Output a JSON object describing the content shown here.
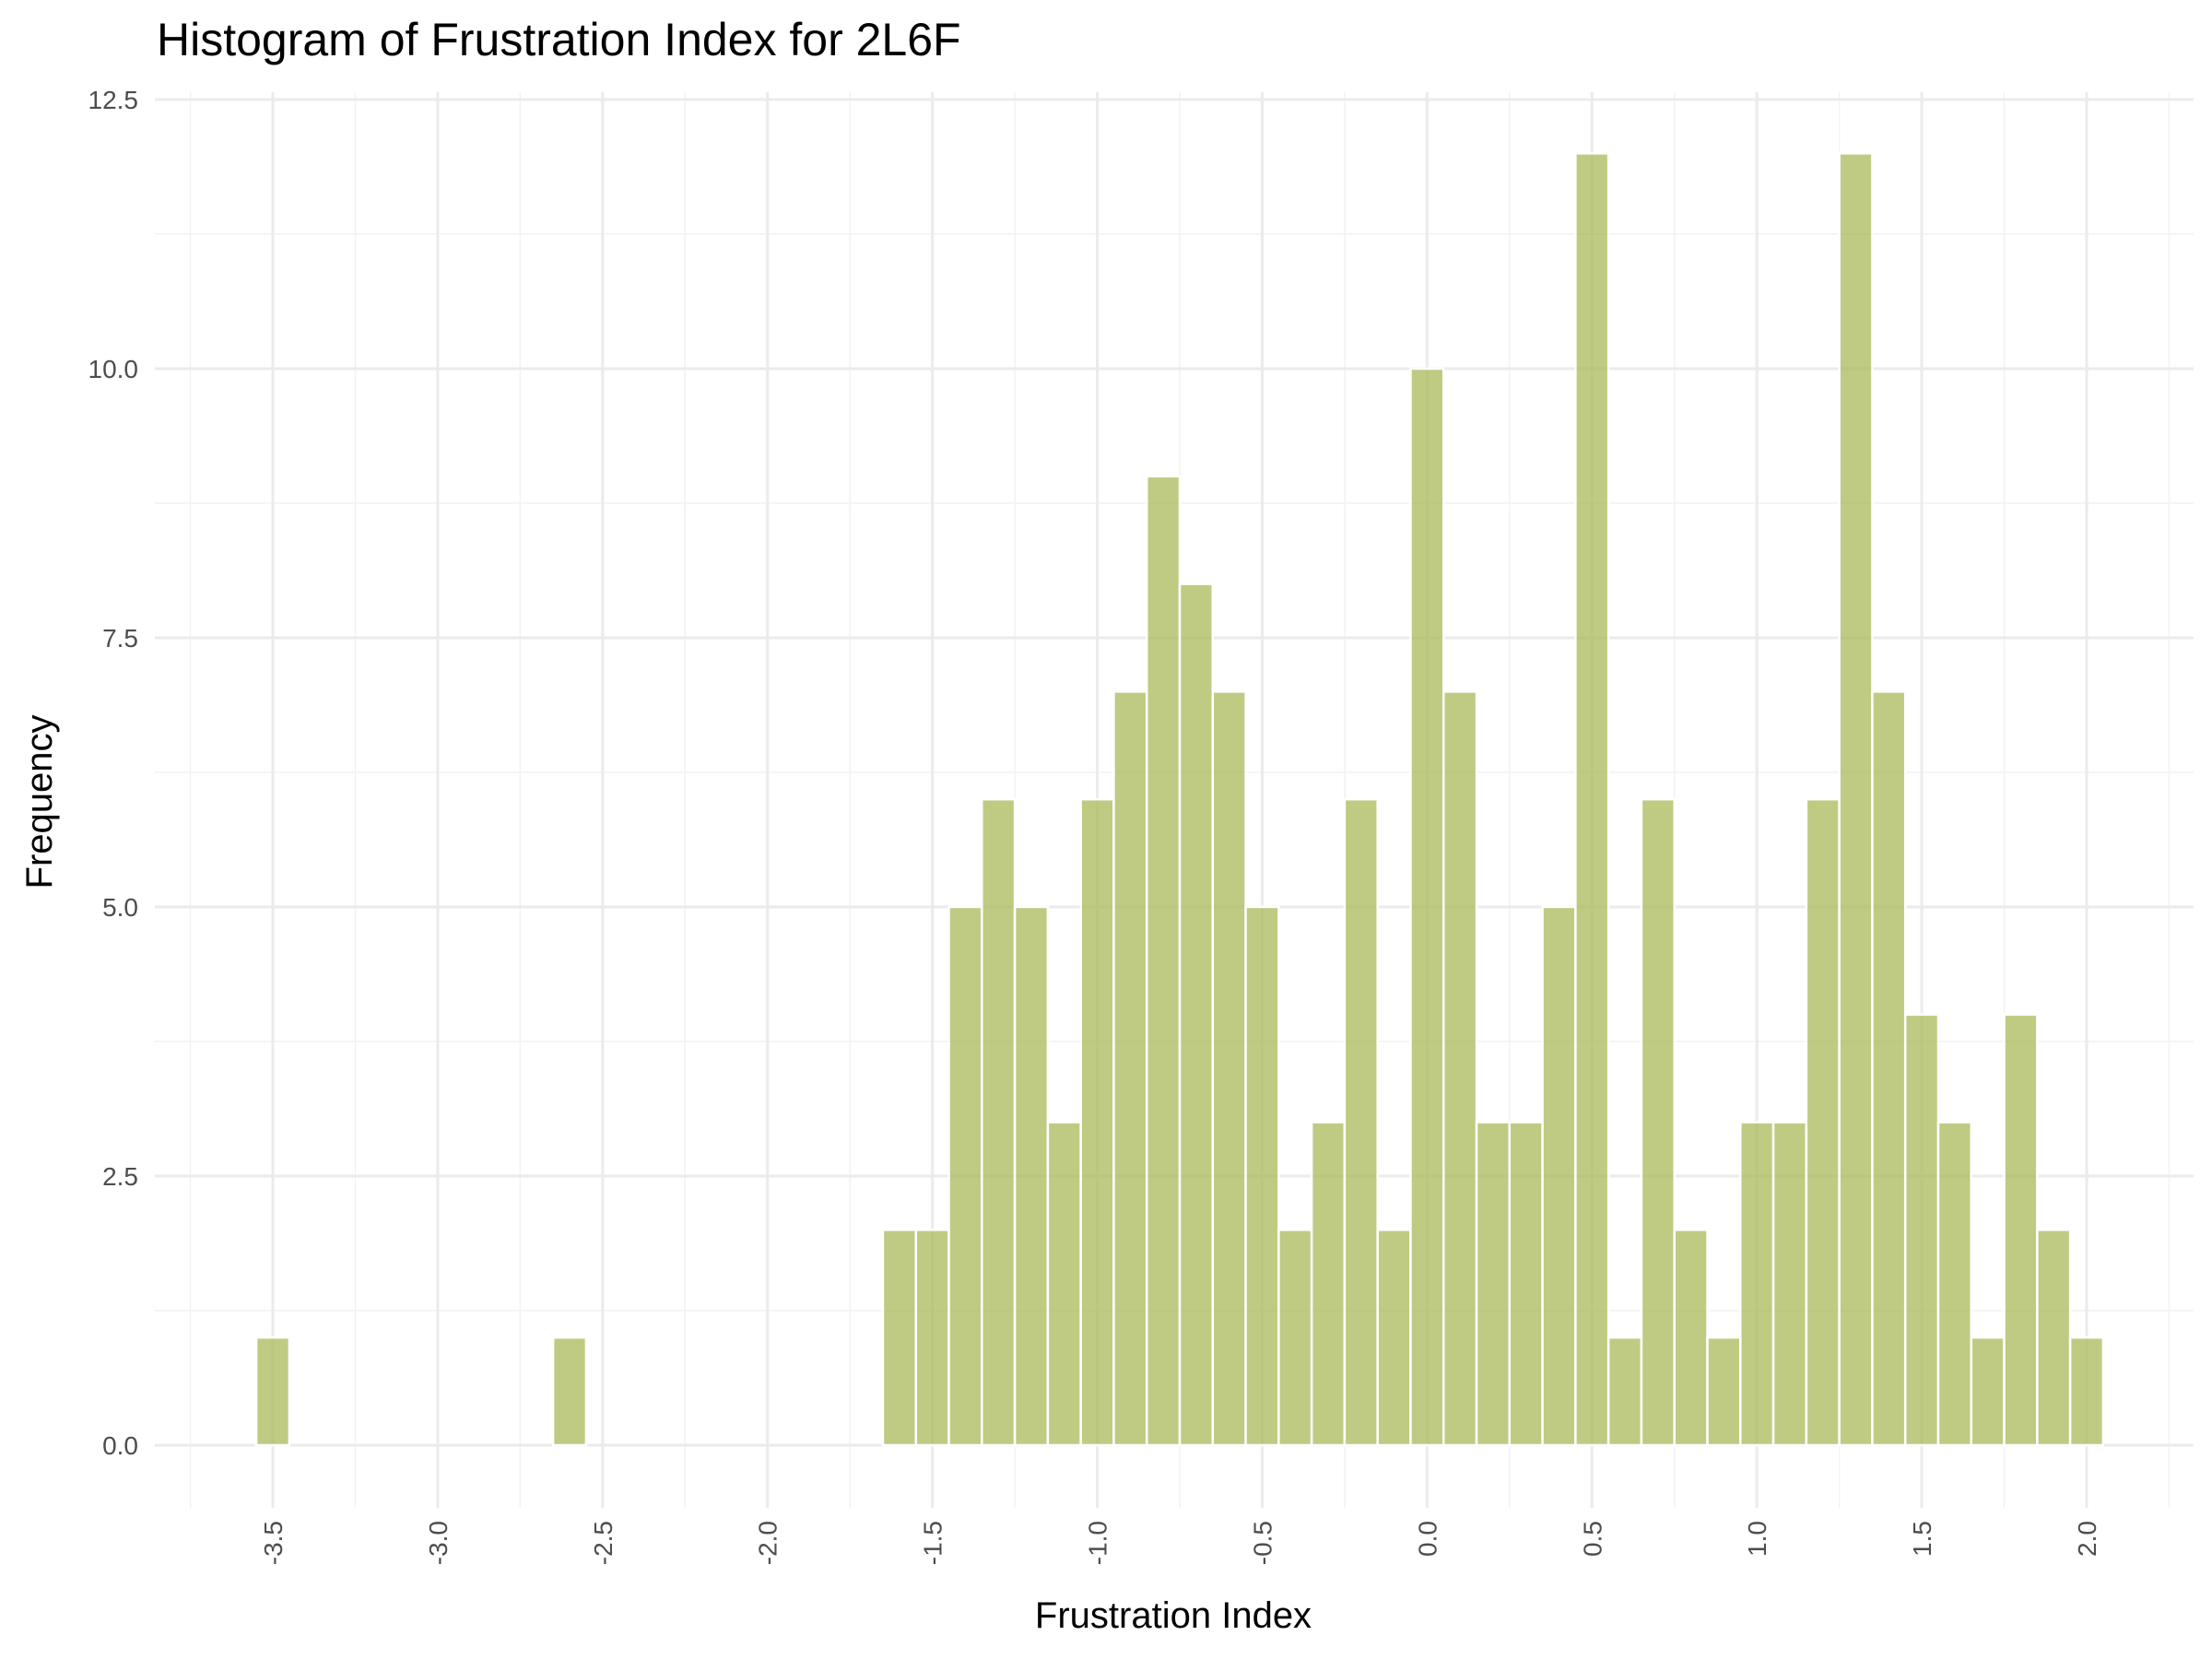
{
  "chart_data": {
    "type": "bar",
    "title": "Histogram of Frustration Index for 2L6F",
    "xlabel": "Frustration Index",
    "ylabel": "Frequency",
    "bar_color": "#a9b95a",
    "bin_width": 0.1,
    "xlim": [
      -3.75,
      2.25
    ],
    "ylim": [
      -0.6,
      12.5
    ],
    "x_ticks": [
      -3.5,
      -3.0,
      -2.5,
      -2.0,
      -1.5,
      -1.0,
      -0.5,
      0.0,
      0.5,
      1.0,
      1.5,
      2.0
    ],
    "x_tick_labels": [
      "-3.5",
      "-3.0",
      "-2.5",
      "-2.0",
      "-1.5",
      "-1.0",
      "-0.5",
      "0.0",
      "0.5",
      "1.0",
      "1.5",
      "2.0"
    ],
    "y_ticks": [
      0,
      2.5,
      5,
      7.5,
      10,
      12.5
    ],
    "y_tick_labels": [
      "0.0",
      "2.5",
      "5.0",
      "7.5",
      "10.0",
      "12.5"
    ],
    "bins": [
      {
        "x": -3.5,
        "count": 1
      },
      {
        "x": -3.4,
        "count": 0
      },
      {
        "x": -3.3,
        "count": 0
      },
      {
        "x": -3.2,
        "count": 0
      },
      {
        "x": -3.1,
        "count": 0
      },
      {
        "x": -3.0,
        "count": 0
      },
      {
        "x": -2.9,
        "count": 0
      },
      {
        "x": -2.8,
        "count": 0
      },
      {
        "x": -2.7,
        "count": 0
      },
      {
        "x": -2.6,
        "count": 1
      },
      {
        "x": -2.5,
        "count": 0
      },
      {
        "x": -2.4,
        "count": 0
      },
      {
        "x": -2.3,
        "count": 0
      },
      {
        "x": -2.2,
        "count": 0
      },
      {
        "x": -2.1,
        "count": 0
      },
      {
        "x": -2.0,
        "count": 0
      },
      {
        "x": -1.9,
        "count": 0
      },
      {
        "x": -1.8,
        "count": 0
      },
      {
        "x": -1.7,
        "count": 0
      },
      {
        "x": -1.6,
        "count": 2
      },
      {
        "x": -1.5,
        "count": 2
      },
      {
        "x": -1.4,
        "count": 5
      },
      {
        "x": -1.3,
        "count": 6
      },
      {
        "x": -1.2,
        "count": 5
      },
      {
        "x": -1.1,
        "count": 3
      },
      {
        "x": -1.0,
        "count": 6
      },
      {
        "x": -0.9,
        "count": 7
      },
      {
        "x": -0.8,
        "count": 9
      },
      {
        "x": -0.7,
        "count": 8
      },
      {
        "x": -0.6,
        "count": 7
      },
      {
        "x": -0.5,
        "count": 5
      },
      {
        "x": -0.4,
        "count": 2
      },
      {
        "x": -0.3,
        "count": 3
      },
      {
        "x": -0.2,
        "count": 6
      },
      {
        "x": -0.1,
        "count": 2
      },
      {
        "x": 0.0,
        "count": 10
      },
      {
        "x": 0.1,
        "count": 7
      },
      {
        "x": 0.2,
        "count": 3
      },
      {
        "x": 0.3,
        "count": 3
      },
      {
        "x": 0.4,
        "count": 5
      },
      {
        "x": 0.5,
        "count": 12
      },
      {
        "x": 0.6,
        "count": 1
      },
      {
        "x": 0.7,
        "count": 6
      },
      {
        "x": 0.8,
        "count": 2
      },
      {
        "x": 0.9,
        "count": 1
      },
      {
        "x": 1.0,
        "count": 3
      },
      {
        "x": 1.1,
        "count": 3
      },
      {
        "x": 1.2,
        "count": 6
      },
      {
        "x": 1.3,
        "count": 12
      },
      {
        "x": 1.4,
        "count": 7
      },
      {
        "x": 1.5,
        "count": 4
      },
      {
        "x": 1.6,
        "count": 3
      },
      {
        "x": 1.7,
        "count": 1
      },
      {
        "x": 1.8,
        "count": 4
      },
      {
        "x": 1.9,
        "count": 2
      },
      {
        "x": 2.0,
        "count": 1
      }
    ],
    "grid": true,
    "legend": "none"
  }
}
